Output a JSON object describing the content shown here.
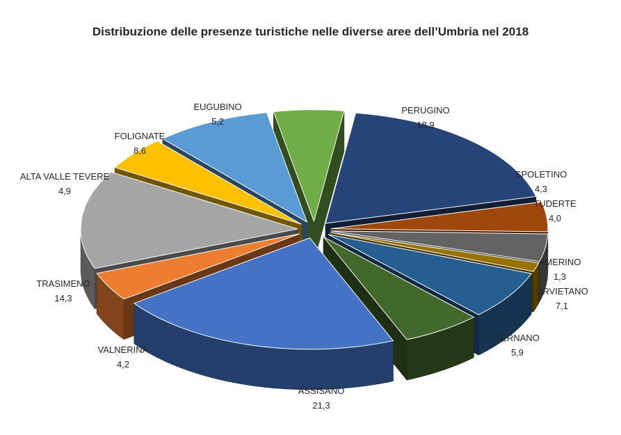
{
  "chart_data": {
    "type": "pie",
    "title": "Distribuzione delle presenze turistiche nelle diverse aree dell’Umbria nel 2018",
    "slices": [
      {
        "label": "PERUGINO",
        "value": 18.9,
        "value_text": "18,9",
        "color": "#264478"
      },
      {
        "label": "SPOLETINO",
        "value": 4.3,
        "value_text": "4,3",
        "color": "#9E480E"
      },
      {
        "label": "TUDERTE",
        "value": 4.0,
        "value_text": "4,0",
        "color": "#636363"
      },
      {
        "label": "AMERINO",
        "value": 1.3,
        "value_text": "1,3",
        "color": "#997300"
      },
      {
        "label": "ORVIETANO",
        "value": 7.1,
        "value_text": "7,1",
        "color": "#255E91"
      },
      {
        "label": "TERNANO",
        "value": 5.9,
        "value_text": "5,9",
        "color": "#43682B"
      },
      {
        "label": "ASSISANO",
        "value": 21.3,
        "value_text": "21,3",
        "color": "#4472C4"
      },
      {
        "label": "VALNERINA",
        "value": 4.2,
        "value_text": "4,2",
        "color": "#ED7D31"
      },
      {
        "label": "TRASIMENO",
        "value": 14.3,
        "value_text": "14,3",
        "color": "#A5A5A5"
      },
      {
        "label": "ALTA VALLE TEVERE",
        "value": 4.9,
        "value_text": "4,9",
        "color": "#FFC000"
      },
      {
        "label": "FOLIGNATE",
        "value": 8.6,
        "value_text": "8,6",
        "color": "#5B9BD5"
      },
      {
        "label": "EUGUBINO",
        "value": 5.2,
        "value_text": "5,2",
        "color": "#70AD47"
      }
    ],
    "style": "3d-exploded",
    "legend": "none"
  }
}
